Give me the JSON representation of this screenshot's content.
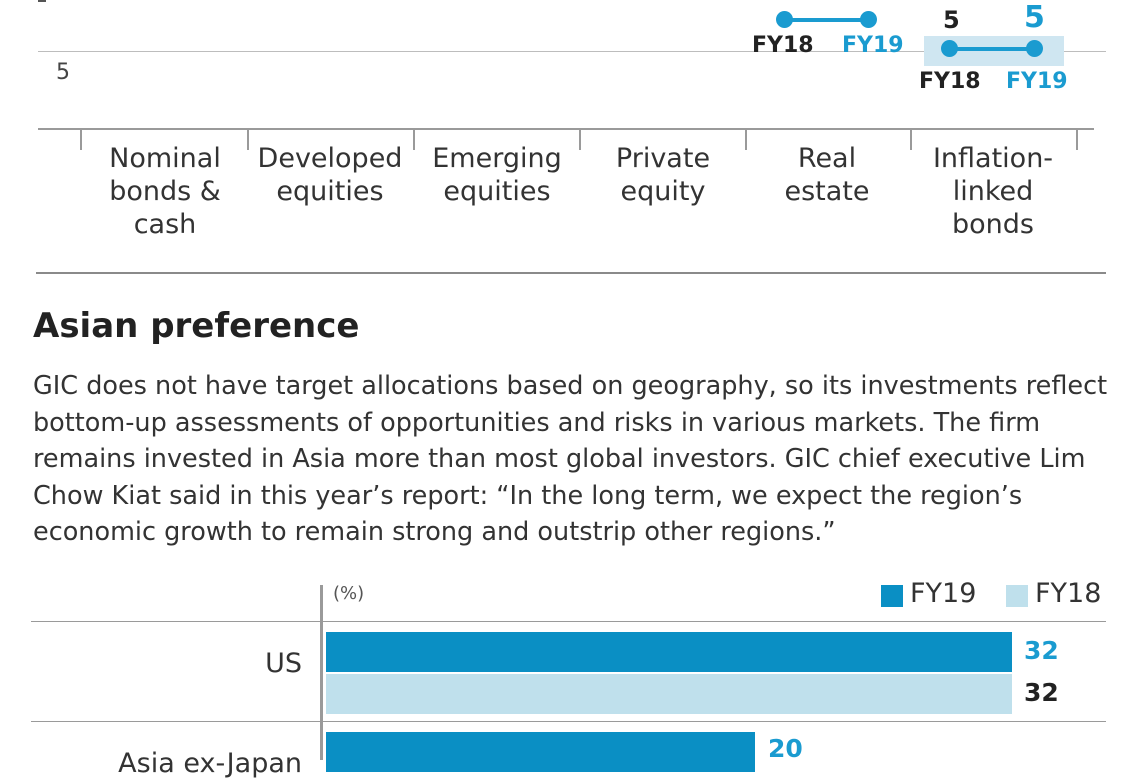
{
  "top_chart": {
    "y_tick": "5",
    "categories": [
      "Nominal\nbonds &\ncash",
      "Developed\nequities",
      "Emerging\nequities",
      "Private\nequity",
      "Real\nestate",
      "Inflation-\nlinked\nbonds"
    ],
    "real_estate": {
      "fy18_label": "FY18",
      "fy19_label": "FY19"
    },
    "inflation_linked": {
      "fy18_value": "5",
      "fy19_value": "5",
      "fy18_label": "FY18",
      "fy19_label": "FY19"
    }
  },
  "section": {
    "title": "Asian preference",
    "body": "GIC does not have target allocations based on geography, so its investments reflect bottom-up assessments of opportunities and risks in various markets. The firm remains invested in Asia more than most global investors. GIC chief executive Lim Chow Kiat said in this year’s report: “In the long term, we expect the region’s economic growth to remain strong and outstrip other regions.”"
  },
  "colors": {
    "fy19": "#0a8fc4",
    "fy18": "#bfe0ec",
    "dot": "#1a9bd0"
  },
  "chart_data": [
    {
      "type": "dumbbell",
      "categories": [
        "Nominal bonds & cash",
        "Developed equities",
        "Emerging equities",
        "Private equity",
        "Real estate",
        "Inflation-linked bonds"
      ],
      "series": [
        {
          "name": "FY18",
          "values": [
            null,
            null,
            null,
            null,
            null,
            5
          ]
        },
        {
          "name": "FY19",
          "values": [
            null,
            null,
            null,
            null,
            null,
            5
          ]
        }
      ],
      "yticks": [
        "5"
      ]
    },
    {
      "type": "bar",
      "unit": "(%)",
      "legend": [
        "FY19",
        "FY18"
      ],
      "legend_position": "top-right",
      "categories": [
        "US",
        "Asia ex-Japan"
      ],
      "series": [
        {
          "name": "FY19",
          "values": [
            32,
            20
          ]
        },
        {
          "name": "FY18",
          "values": [
            32,
            null
          ]
        }
      ],
      "xlim": [
        0,
        40
      ],
      "labels": [
        "US",
        "Asia ex-Japan"
      ],
      "value_labels": {
        "US": {
          "FY19": "32",
          "FY18": "32"
        },
        "Asia ex-Japan": {
          "FY19": "20"
        }
      }
    }
  ]
}
